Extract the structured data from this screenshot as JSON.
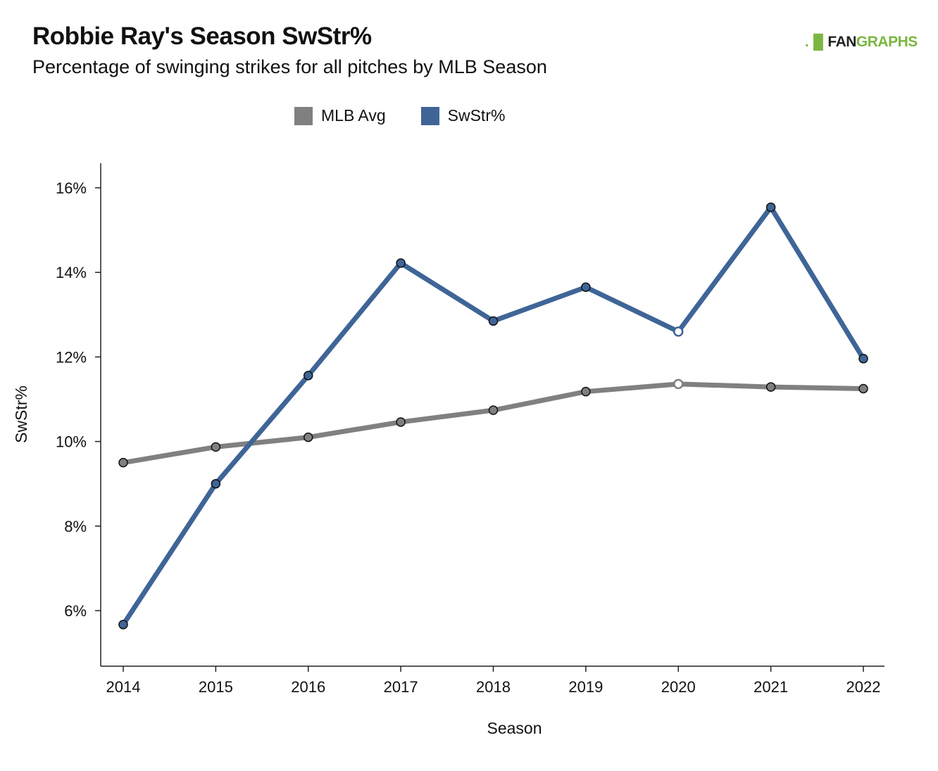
{
  "header": {
    "title": "Robbie Ray's Season SwStr%",
    "subtitle": "Percentage of swinging strikes for all pitches by MLB Season",
    "logo_mark": ".▐▌",
    "logo_fan": "FAN",
    "logo_graphs": "GRAPHS"
  },
  "legend": {
    "items": [
      {
        "label": "MLB Avg",
        "color": "#808080"
      },
      {
        "label": "SwStr%",
        "color": "#3f6597"
      }
    ]
  },
  "chart_data": {
    "type": "line",
    "title": "Robbie Ray's Season SwStr%",
    "subtitle": "Percentage of swinging strikes for all pitches by MLB Season",
    "xlabel": "Season",
    "ylabel": "SwStr%",
    "x": [
      "2014",
      "2015",
      "2016",
      "2017",
      "2018",
      "2019",
      "2020",
      "2021",
      "2022"
    ],
    "ylim": [
      4.7,
      16.6
    ],
    "yticks": [
      6,
      8,
      10,
      12,
      14,
      16
    ],
    "ytick_labels": [
      "6%",
      "8%",
      "10%",
      "12%",
      "14%",
      "16%"
    ],
    "series": [
      {
        "name": "MLB Avg",
        "color": "#808080",
        "values": [
          9.5,
          9.87,
          10.1,
          10.46,
          10.74,
          11.18,
          11.36,
          11.29,
          11.25
        ]
      },
      {
        "name": "SwStr%",
        "color": "#3f6597",
        "values": [
          5.67,
          9.0,
          11.56,
          14.22,
          12.85,
          13.65,
          12.6,
          15.54,
          11.96
        ]
      }
    ],
    "highlight_x": "2020",
    "grid": false,
    "legend_position": "top-center"
  }
}
